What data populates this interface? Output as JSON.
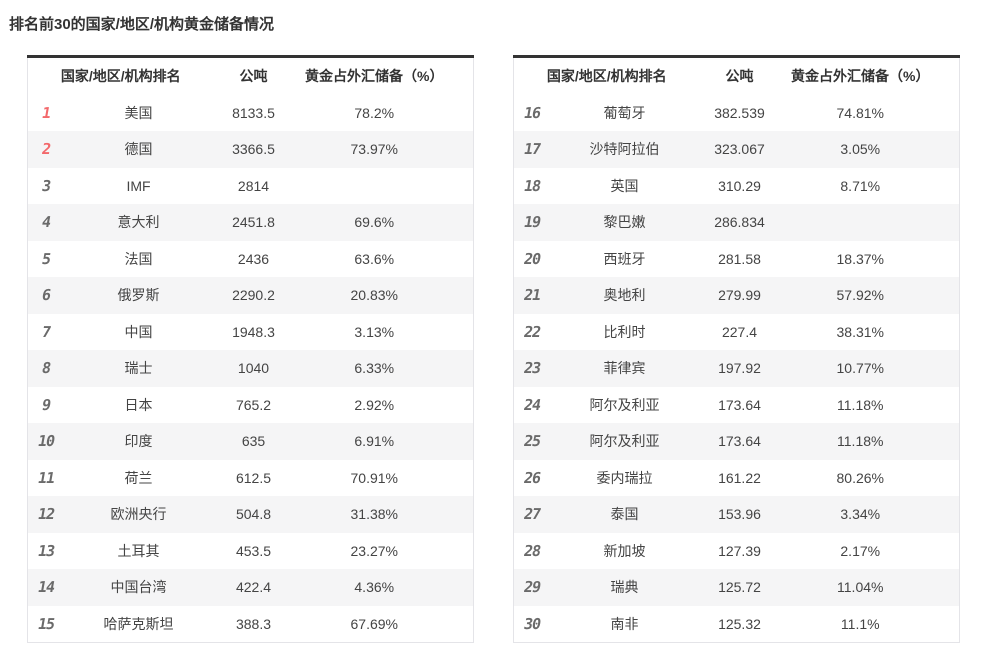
{
  "title": "排名前30的国家/地区/机构黄金储备情况",
  "headers": {
    "rank_and_name": "国家/地区/机构排名",
    "tonnes": "公吨",
    "gold_fx_pct": "黄金占外汇储备（%）"
  },
  "left_table": {
    "rows": [
      {
        "rank": "1",
        "name": "美国",
        "tons": "8133.5",
        "pct": "78.2%"
      },
      {
        "rank": "2",
        "name": "德国",
        "tons": "3366.5",
        "pct": "73.97%"
      },
      {
        "rank": "3",
        "name": "IMF",
        "tons": "2814",
        "pct": ""
      },
      {
        "rank": "4",
        "name": "意大利",
        "tons": "2451.8",
        "pct": "69.6%"
      },
      {
        "rank": "5",
        "name": "法国",
        "tons": "2436",
        "pct": "63.6%"
      },
      {
        "rank": "6",
        "name": "俄罗斯",
        "tons": "2290.2",
        "pct": "20.83%"
      },
      {
        "rank": "7",
        "name": "中国",
        "tons": "1948.3",
        "pct": "3.13%"
      },
      {
        "rank": "8",
        "name": "瑞士",
        "tons": "1040",
        "pct": "6.33%"
      },
      {
        "rank": "9",
        "name": "日本",
        "tons": "765.2",
        "pct": "2.92%"
      },
      {
        "rank": "10",
        "name": "印度",
        "tons": "635",
        "pct": "6.91%"
      },
      {
        "rank": "11",
        "name": "荷兰",
        "tons": "612.5",
        "pct": "70.91%"
      },
      {
        "rank": "12",
        "name": "欧洲央行",
        "tons": "504.8",
        "pct": "31.38%"
      },
      {
        "rank": "13",
        "name": "土耳其",
        "tons": "453.5",
        "pct": "23.27%"
      },
      {
        "rank": "14",
        "name": "中国台湾",
        "tons": "422.4",
        "pct": "4.36%"
      },
      {
        "rank": "15",
        "name": "哈萨克斯坦",
        "tons": "388.3",
        "pct": "67.69%"
      }
    ]
  },
  "right_table": {
    "rows": [
      {
        "rank": "16",
        "name": "葡萄牙",
        "tons": "382.539",
        "pct": "74.81%"
      },
      {
        "rank": "17",
        "name": "沙特阿拉伯",
        "tons": "323.067",
        "pct": "3.05%"
      },
      {
        "rank": "18",
        "name": "英国",
        "tons": "310.29",
        "pct": "8.71%"
      },
      {
        "rank": "19",
        "name": "黎巴嫩",
        "tons": "286.834",
        "pct": ""
      },
      {
        "rank": "20",
        "name": "西班牙",
        "tons": "281.58",
        "pct": "18.37%"
      },
      {
        "rank": "21",
        "name": "奥地利",
        "tons": "279.99",
        "pct": "57.92%"
      },
      {
        "rank": "22",
        "name": "比利时",
        "tons": "227.4",
        "pct": "38.31%"
      },
      {
        "rank": "23",
        "name": "菲律宾",
        "tons": "197.92",
        "pct": "10.77%"
      },
      {
        "rank": "24",
        "name": "阿尔及利亚",
        "tons": "173.64",
        "pct": "11.18%"
      },
      {
        "rank": "25",
        "name": "阿尔及利亚",
        "tons": "173.64",
        "pct": "11.18%"
      },
      {
        "rank": "26",
        "name": "委内瑞拉",
        "tons": "161.22",
        "pct": "80.26%"
      },
      {
        "rank": "27",
        "name": "泰国",
        "tons": "153.96",
        "pct": "3.34%"
      },
      {
        "rank": "28",
        "name": "新加坡",
        "tons": "127.39",
        "pct": "2.17%"
      },
      {
        "rank": "29",
        "name": "瑞典",
        "tons": "125.72",
        "pct": "11.04%"
      },
      {
        "rank": "30",
        "name": "南非",
        "tons": "125.32",
        "pct": "11.1%"
      }
    ]
  },
  "colors": {
    "top3_rank_red": "#f3686b",
    "rank_gray": "#6a6a6a",
    "row_stripe": "#f5f5f6",
    "table_top_border": "#333333",
    "table_side_border": "#e4e4e8",
    "body_text": "#444444",
    "header_text": "#333333"
  }
}
